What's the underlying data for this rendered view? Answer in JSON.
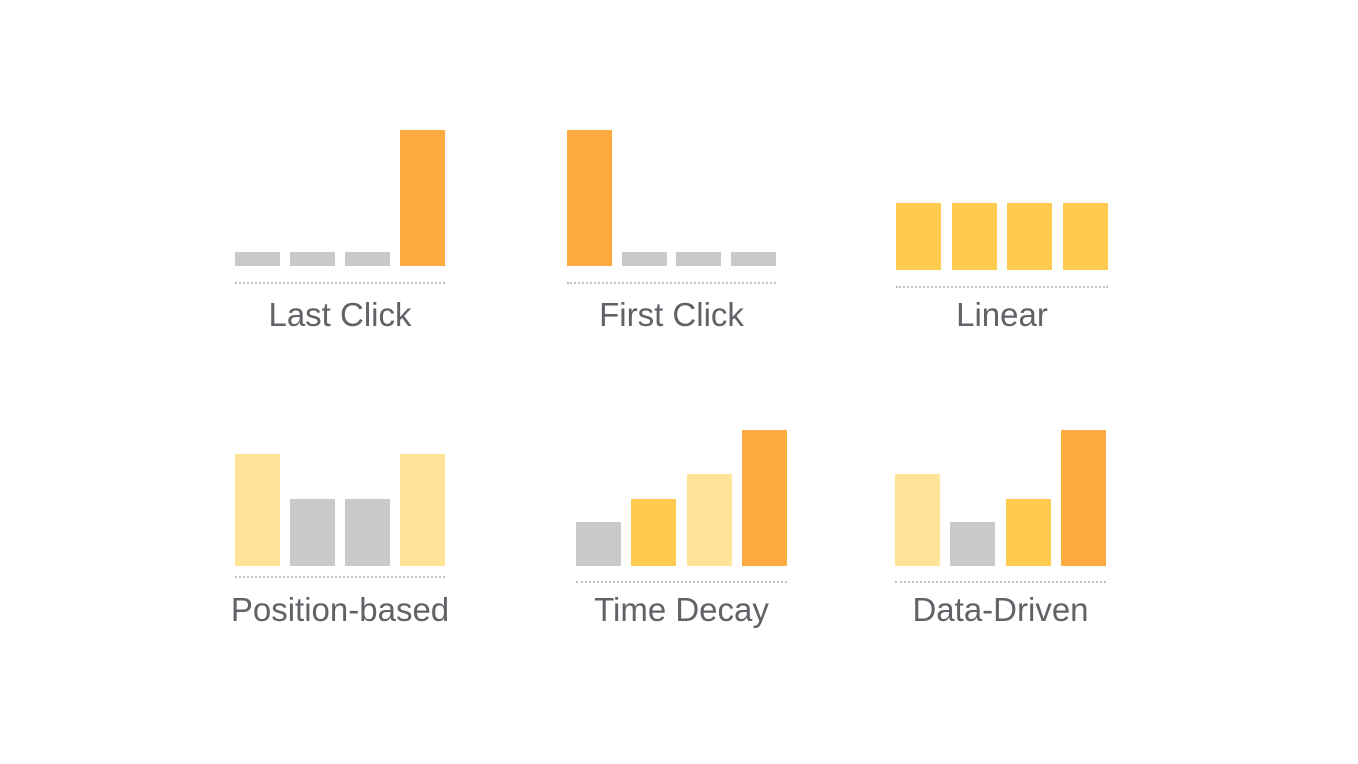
{
  "colors": {
    "orange": "#FDAB40",
    "yellow": "#FECB4F",
    "pale": "#FEE398",
    "gray": "#C8C9CA"
  },
  "models": [
    {
      "label": "Last Click",
      "bars": [
        {
          "value": 10,
          "color": "gray"
        },
        {
          "value": 10,
          "color": "gray"
        },
        {
          "value": 10,
          "color": "gray"
        },
        {
          "value": 100,
          "color": "orange"
        }
      ]
    },
    {
      "label": "First Click",
      "bars": [
        {
          "value": 100,
          "color": "orange"
        },
        {
          "value": 10,
          "color": "gray"
        },
        {
          "value": 10,
          "color": "gray"
        },
        {
          "value": 10,
          "color": "gray"
        }
      ]
    },
    {
      "label": "Linear",
      "bars": [
        {
          "value": 49,
          "color": "yellow"
        },
        {
          "value": 49,
          "color": "yellow"
        },
        {
          "value": 49,
          "color": "yellow"
        },
        {
          "value": 49,
          "color": "yellow"
        }
      ]
    },
    {
      "label": "Position-based",
      "bars": [
        {
          "value": 82,
          "color": "pale"
        },
        {
          "value": 49,
          "color": "gray"
        },
        {
          "value": 49,
          "color": "gray"
        },
        {
          "value": 82,
          "color": "pale"
        }
      ]
    },
    {
      "label": "Time Decay",
      "bars": [
        {
          "value": 32,
          "color": "gray"
        },
        {
          "value": 49,
          "color": "yellow"
        },
        {
          "value": 68,
          "color": "pale"
        },
        {
          "value": 100,
          "color": "orange"
        }
      ]
    },
    {
      "label": "Data-Driven",
      "bars": [
        {
          "value": 68,
          "color": "pale"
        },
        {
          "value": 32,
          "color": "gray"
        },
        {
          "value": 49,
          "color": "yellow"
        },
        {
          "value": 100,
          "color": "orange"
        }
      ]
    }
  ]
}
